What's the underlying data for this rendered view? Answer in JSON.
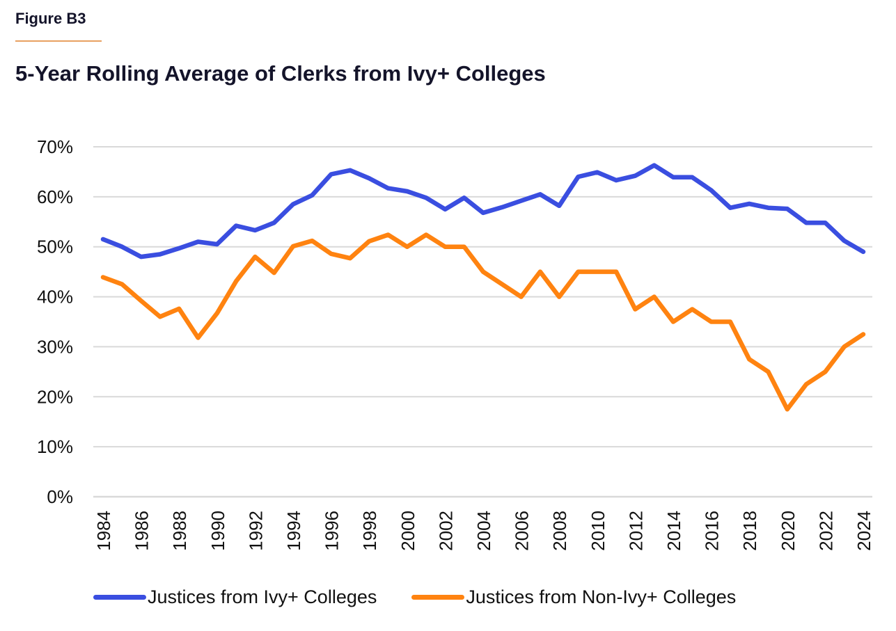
{
  "figure_label": "Figure B3",
  "title": "5-Year Rolling Average of Clerks from Ivy+ Colleges",
  "colors": {
    "ivy": "#3a4ee0",
    "non_ivy": "#ff8310",
    "grid": "#d9d9d9",
    "accent_rule": "#e8a061"
  },
  "chart_data": {
    "type": "line",
    "title": "5-Year Rolling Average of Clerks from Ivy+ Colleges",
    "xlabel": "",
    "ylabel": "",
    "ylim": [
      0,
      70
    ],
    "y_ticks": [
      "0%",
      "10%",
      "20%",
      "30%",
      "40%",
      "50%",
      "60%",
      "70%"
    ],
    "y_tick_values": [
      0,
      10,
      20,
      30,
      40,
      50,
      60,
      70
    ],
    "x_tick_labels": [
      "1984",
      "1986",
      "1988",
      "1990",
      "1992",
      "1994",
      "1996",
      "1998",
      "2000",
      "2002",
      "2004",
      "2006",
      "2008",
      "2010",
      "2012",
      "2014",
      "2016",
      "2018",
      "2020",
      "2022",
      "2024"
    ],
    "x": [
      1984,
      1985,
      1986,
      1987,
      1988,
      1989,
      1990,
      1991,
      1992,
      1993,
      1994,
      1995,
      1996,
      1997,
      1998,
      1999,
      2000,
      2001,
      2002,
      2003,
      2004,
      2005,
      2006,
      2007,
      2008,
      2009,
      2010,
      2011,
      2012,
      2013,
      2014,
      2015,
      2016,
      2017,
      2018,
      2019,
      2020,
      2021,
      2022,
      2023,
      2024
    ],
    "grid": true,
    "legend_position": "bottom",
    "series": [
      {
        "name": "Justices from Ivy+ Colleges",
        "color": "#3a4ee0",
        "values": [
          51.5,
          50.0,
          48.0,
          48.5,
          49.7,
          51.0,
          50.5,
          54.2,
          53.3,
          54.8,
          58.5,
          60.3,
          64.5,
          65.3,
          63.7,
          61.7,
          61.1,
          59.8,
          57.5,
          59.8,
          56.8,
          57.9,
          59.2,
          60.5,
          58.2,
          64.0,
          64.9,
          63.3,
          64.2,
          66.3,
          63.9,
          63.9,
          61.3,
          57.8,
          58.6,
          57.8,
          57.6,
          54.8,
          54.8,
          51.2,
          49.0
        ]
      },
      {
        "name": "Justices from Non-Ivy+ Colleges",
        "color": "#ff8310",
        "values": [
          43.9,
          42.5,
          39.2,
          36.0,
          37.6,
          31.8,
          36.7,
          43.1,
          48.0,
          44.8,
          50.1,
          51.2,
          48.6,
          47.7,
          51.1,
          52.4,
          50.0,
          52.4,
          50.0,
          50.0,
          45.0,
          42.5,
          40.0,
          45.0,
          40.0,
          45.0,
          45.0,
          45.0,
          37.5,
          40.0,
          35.0,
          37.5,
          35.0,
          35.0,
          27.5,
          25.0,
          17.5,
          22.5,
          25.0,
          30.0,
          32.5
        ]
      }
    ]
  }
}
